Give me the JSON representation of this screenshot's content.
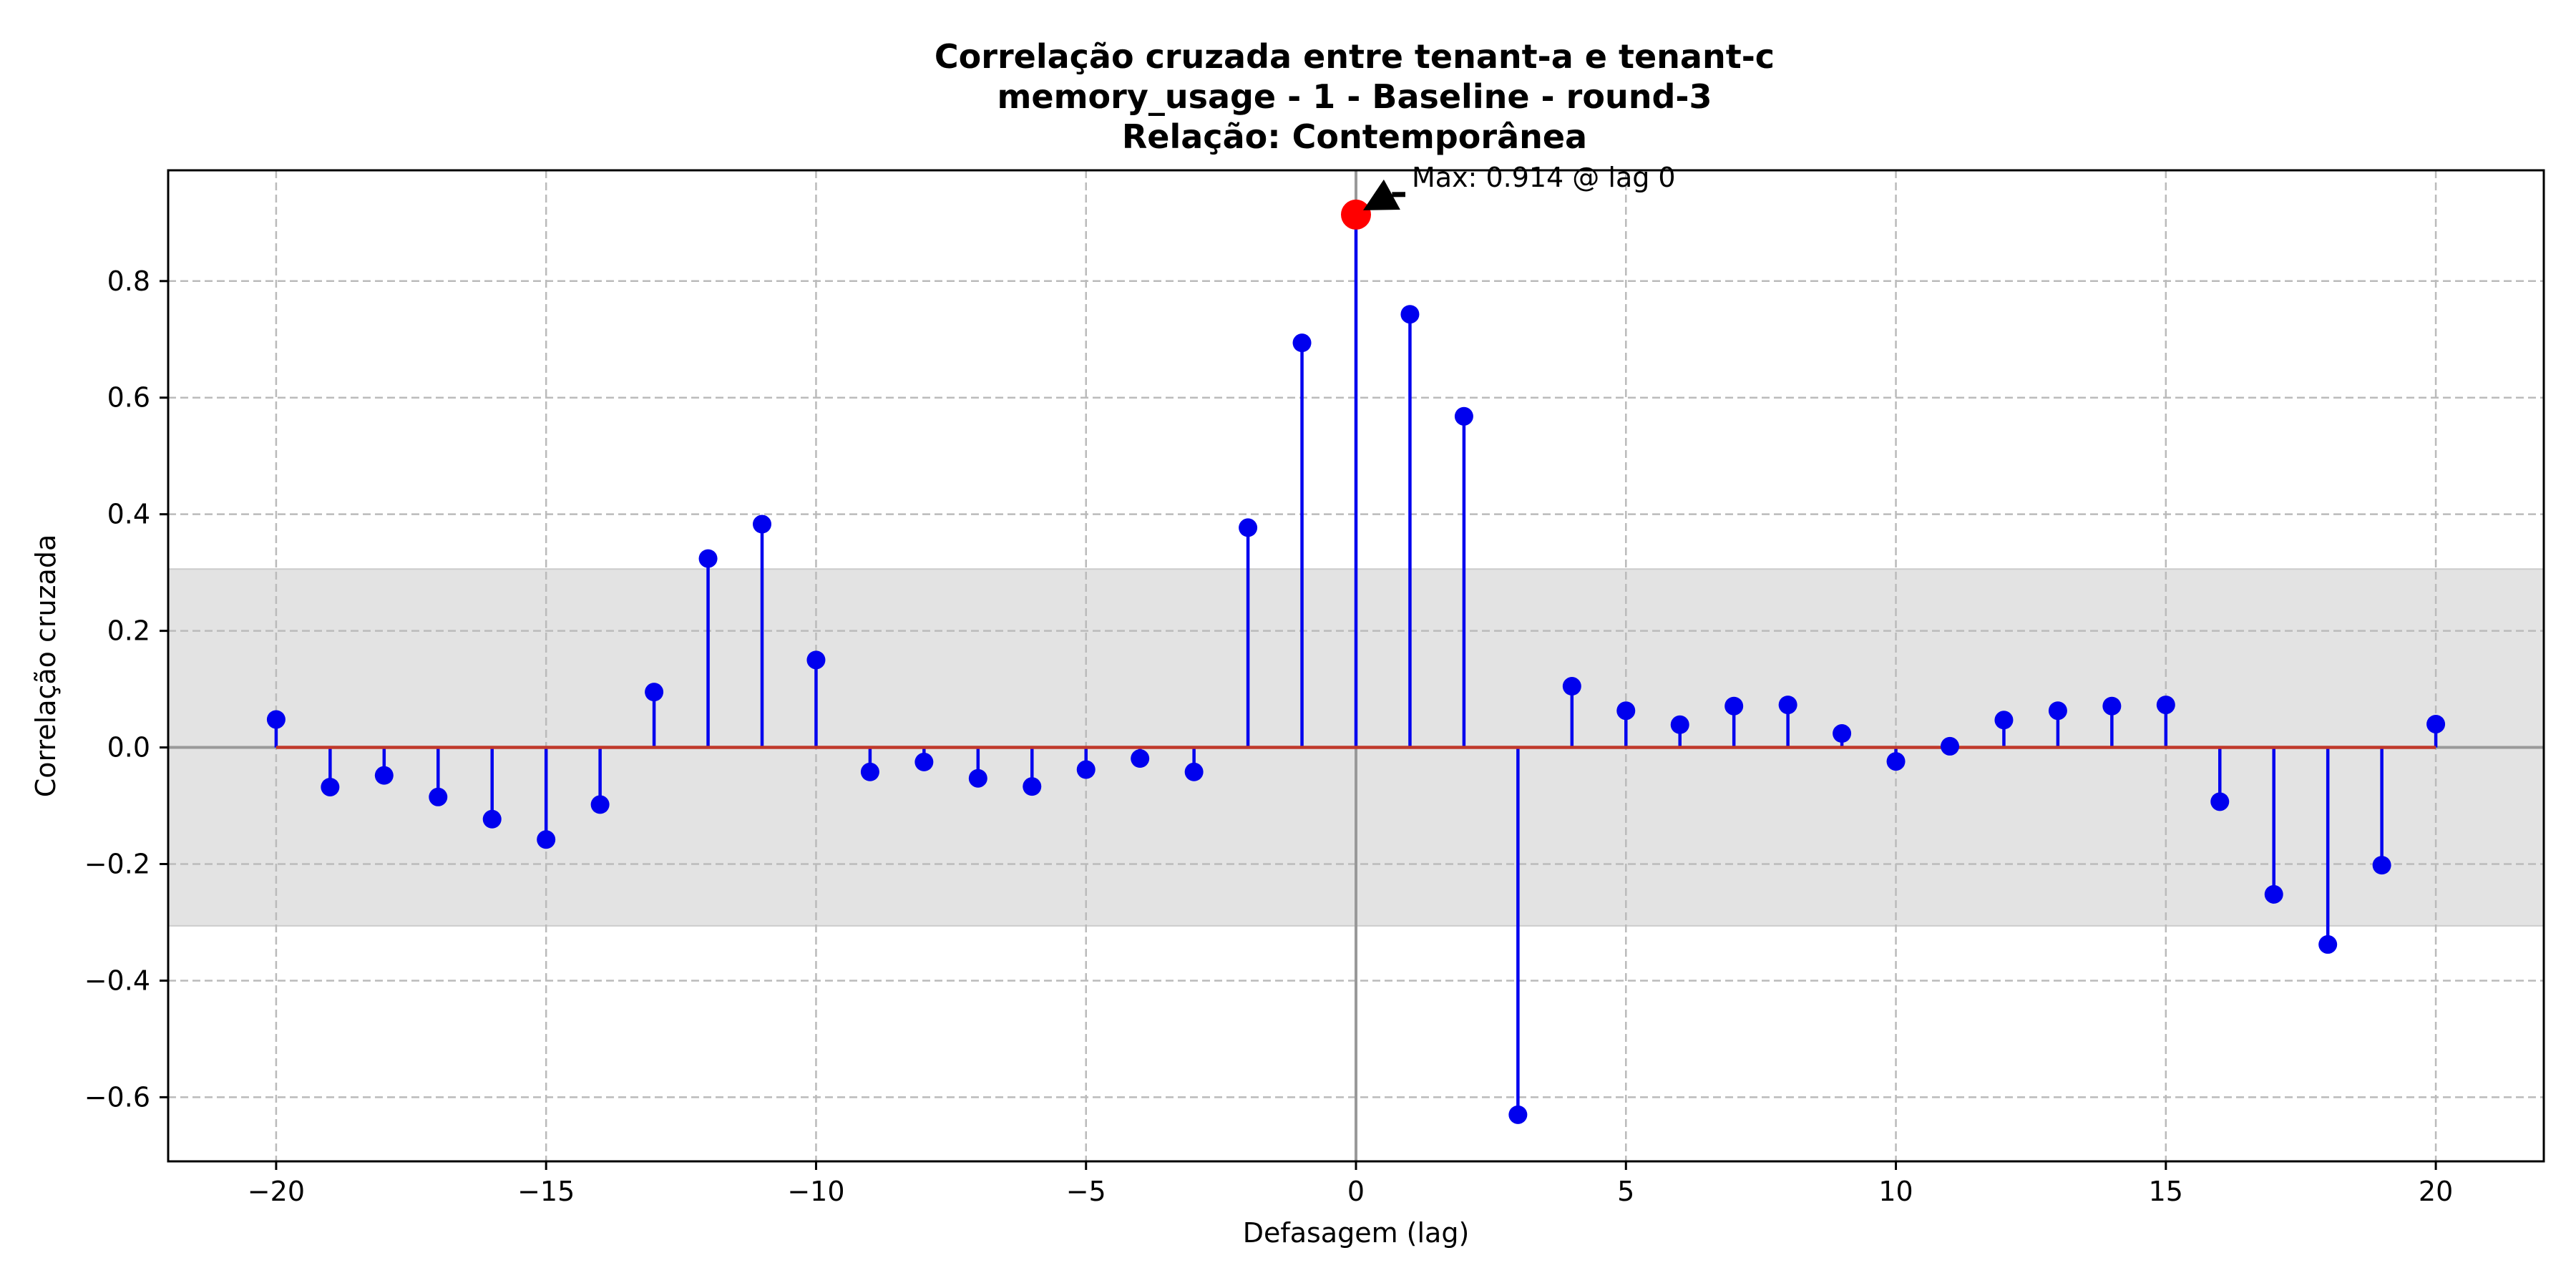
{
  "chart_data": {
    "type": "stem",
    "title_lines": [
      "Correlação cruzada entre tenant-a e tenant-c",
      "memory_usage - 1 - Baseline - round-3",
      "Relação: Contemporânea"
    ],
    "xlabel": "Defasagem (lag)",
    "ylabel": "Correlação cruzada",
    "xlim": [
      -22,
      22
    ],
    "ylim": [
      -0.71,
      0.99
    ],
    "xticks": [
      -20,
      -15,
      -10,
      -5,
      0,
      5,
      10,
      15,
      20
    ],
    "xtick_labels": [
      "−20",
      "−15",
      "−10",
      "−5",
      "0",
      "5",
      "10",
      "15",
      "20"
    ],
    "yticks": [
      -0.6,
      -0.4,
      -0.2,
      0.0,
      0.2,
      0.4,
      0.6,
      0.8
    ],
    "ytick_labels": [
      "−0.6",
      "−0.4",
      "−0.2",
      "0.0",
      "0.2",
      "0.4",
      "0.6",
      "0.8"
    ],
    "grid": true,
    "confidence_band": [
      -0.306,
      0.306
    ],
    "x": [
      -20,
      -19,
      -18,
      -17,
      -16,
      -15,
      -14,
      -13,
      -12,
      -11,
      -10,
      -9,
      -8,
      -7,
      -6,
      -5,
      -4,
      -3,
      -2,
      -1,
      0,
      1,
      2,
      3,
      4,
      5,
      6,
      7,
      8,
      9,
      10,
      11,
      12,
      13,
      14,
      15,
      16,
      17,
      18,
      19,
      20
    ],
    "values": [
      0.048,
      -0.068,
      -0.048,
      -0.085,
      -0.123,
      -0.158,
      -0.098,
      0.095,
      0.324,
      0.383,
      0.15,
      -0.042,
      -0.025,
      -0.053,
      -0.067,
      -0.038,
      -0.019,
      -0.042,
      0.377,
      0.694,
      0.914,
      0.743,
      0.568,
      -0.63,
      0.105,
      0.063,
      0.039,
      0.071,
      0.073,
      0.024,
      -0.024,
      0.002,
      0.047,
      0.063,
      0.071,
      0.073,
      -0.093,
      -0.252,
      -0.338,
      -0.202,
      0.04
    ],
    "max_point": {
      "lag": 0,
      "value": 0.914
    },
    "annotation": "Max: 0.914 @ lag 0",
    "colors": {
      "stem": "#0000ee",
      "marker": "#0000ee",
      "max_marker": "#ff0000",
      "baseline": "#c0392b",
      "band": "#e3e3e3",
      "zero_lines": "#999999",
      "grid": "#bbbbbb"
    }
  }
}
